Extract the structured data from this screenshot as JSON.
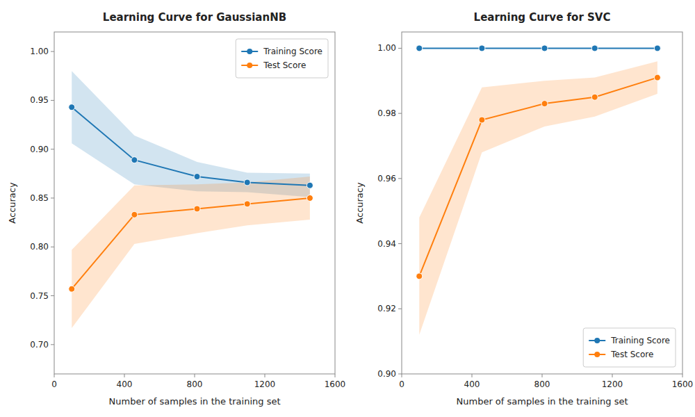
{
  "chart_data": [
    {
      "type": "line",
      "title": "Learning Curve for GaussianNB",
      "xlabel": "Number of samples in the training set",
      "ylabel": "Accuracy",
      "x": [
        100,
        457,
        814,
        1100,
        1457
      ],
      "series": [
        {
          "name": "Training Score",
          "color": "#1f77b4",
          "marker": "circle",
          "line_style": "solid",
          "values": [
            0.943,
            0.889,
            0.872,
            0.866,
            0.863
          ],
          "errors": [
            0.037,
            0.025,
            0.015,
            0.01,
            0.012
          ]
        },
        {
          "name": "Test Score",
          "color": "#ff7f0e",
          "marker": "circle",
          "line_style": "solid",
          "values": [
            0.757,
            0.833,
            0.839,
            0.844,
            0.85
          ],
          "errors": [
            0.04,
            0.03,
            0.025,
            0.022,
            0.022
          ]
        }
      ],
      "xlim": [
        0,
        1600
      ],
      "xticks": [
        0,
        400,
        800,
        1200,
        1600
      ],
      "ylim": [
        0.67,
        1.02
      ],
      "yticks": [
        {
          "value": 0.7,
          "label": "0.70"
        },
        {
          "value": 0.75,
          "label": "0.75"
        },
        {
          "value": 0.8,
          "label": "0.80"
        },
        {
          "value": 0.85,
          "label": "0.85"
        },
        {
          "value": 0.9,
          "label": "0.90"
        },
        {
          "value": 0.95,
          "label": "0.95"
        },
        {
          "value": 1.0,
          "label": "1.00"
        }
      ],
      "grid": false,
      "legend": "upper right"
    },
    {
      "type": "line",
      "title": "Learning Curve for SVC",
      "xlabel": "Number of samples in the training set",
      "ylabel": "Accuracy",
      "x": [
        100,
        457,
        814,
        1100,
        1457
      ],
      "series": [
        {
          "name": "Training Score",
          "color": "#1f77b4",
          "marker": "circle",
          "line_style": "solid",
          "values": [
            1.0,
            1.0,
            1.0,
            1.0,
            1.0
          ],
          "errors": [
            0.0,
            0.0,
            0.0,
            0.0,
            0.0
          ]
        },
        {
          "name": "Test Score",
          "color": "#ff7f0e",
          "marker": "circle",
          "line_style": "solid",
          "values": [
            0.93,
            0.978,
            0.983,
            0.985,
            0.991
          ],
          "errors": [
            0.018,
            0.01,
            0.007,
            0.006,
            0.005
          ]
        }
      ],
      "xlim": [
        0,
        1600
      ],
      "xticks": [
        0,
        400,
        800,
        1200,
        1600
      ],
      "ylim": [
        0.9,
        1.005
      ],
      "yticks": [
        {
          "value": 0.9,
          "label": "0.90"
        },
        {
          "value": 0.92,
          "label": "0.92"
        },
        {
          "value": 0.94,
          "label": "0.94"
        },
        {
          "value": 0.96,
          "label": "0.96"
        },
        {
          "value": 0.98,
          "label": "0.98"
        },
        {
          "value": 1.0,
          "label": "1.00"
        }
      ],
      "grid": false,
      "legend": "lower right"
    }
  ]
}
